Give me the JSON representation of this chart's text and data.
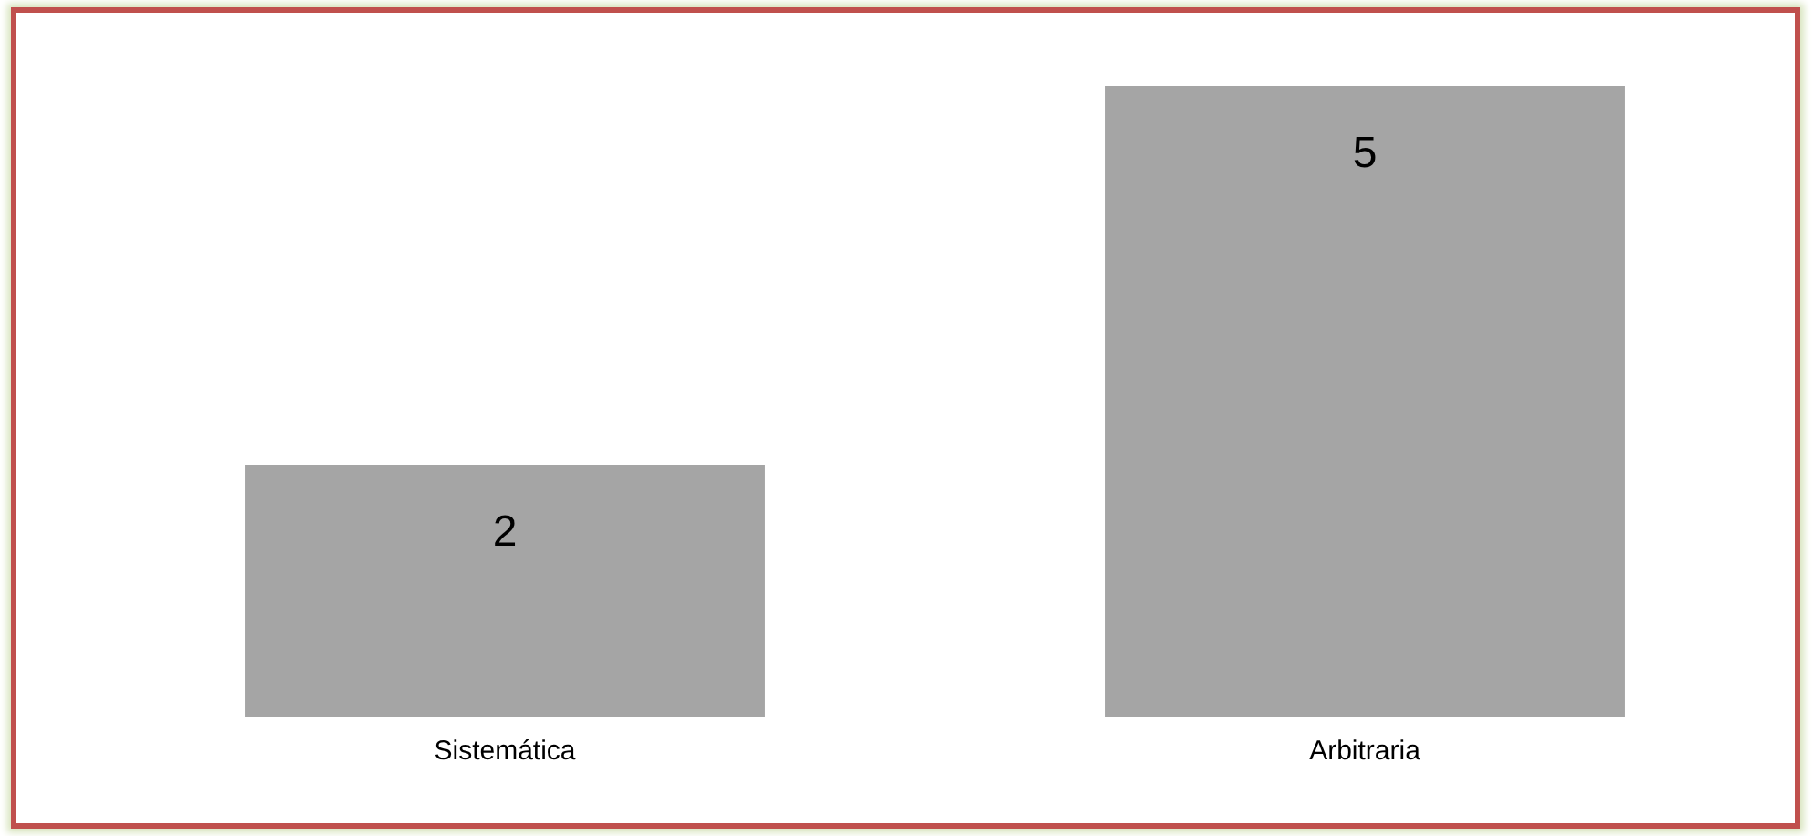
{
  "chart_data": {
    "type": "bar",
    "categories": [
      "Sistemática",
      "Arbitraria"
    ],
    "values": [
      2,
      5
    ],
    "color": "#a5a5a5",
    "data_labels": true,
    "legend": false,
    "grid": false
  }
}
